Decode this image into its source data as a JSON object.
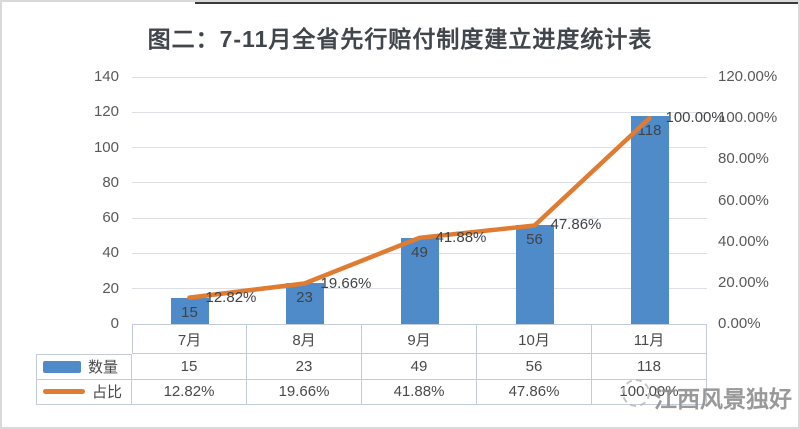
{
  "title": "图二：7-11月全省先行赔付制度建立进度统计表",
  "chart_data": {
    "type": "combo-bar-line",
    "categories": [
      "7月",
      "8月",
      "9月",
      "10月",
      "11月"
    ],
    "series": [
      {
        "name": "数量",
        "type": "bar",
        "axis": "left",
        "values": [
          15,
          23,
          49,
          56,
          118
        ],
        "labels": [
          "15",
          "23",
          "49",
          "56",
          "118"
        ],
        "color": "#4f8bc9"
      },
      {
        "name": "占比",
        "type": "line",
        "axis": "right",
        "values": [
          12.82,
          19.66,
          41.88,
          47.86,
          100.0
        ],
        "labels": [
          "12.82%",
          "19.66%",
          "41.88%",
          "47.86%",
          "100.00%"
        ],
        "color": "#e07c31"
      }
    ],
    "left_axis": {
      "min": 0,
      "max": 140,
      "step": 20,
      "ticks": [
        "140",
        "120",
        "100",
        "80",
        "60",
        "40",
        "20",
        "0"
      ]
    },
    "right_axis": {
      "min": 0,
      "max": 120,
      "step": 20,
      "ticks": [
        "120.00%",
        "100.00%",
        "80.00%",
        "60.00%",
        "40.00%",
        "20.00%",
        "0.00%"
      ]
    },
    "gridlines": true,
    "legend_position": "data-table-left"
  },
  "data_table": {
    "columns": [
      "7月",
      "8月",
      "9月",
      "10月",
      "11月"
    ],
    "rows": [
      {
        "label": "数量",
        "swatch": "bar",
        "values": [
          "15",
          "23",
          "49",
          "56",
          "118"
        ]
      },
      {
        "label": "占比",
        "swatch": "line",
        "values": [
          "12.82%",
          "19.66%",
          "41.88%",
          "47.86%",
          "100.00%"
        ]
      }
    ]
  },
  "watermark": {
    "text": "江西风景独好"
  },
  "colors": {
    "bar": "#4f8bc9",
    "line": "#e07c31",
    "axis_text": "#595959",
    "grid": "#dcdfe4",
    "table_border": "#c3cdd9",
    "title_text": "#41454c",
    "data_label_text": "#3f4348",
    "watermark_text": "#8f8f8f"
  }
}
